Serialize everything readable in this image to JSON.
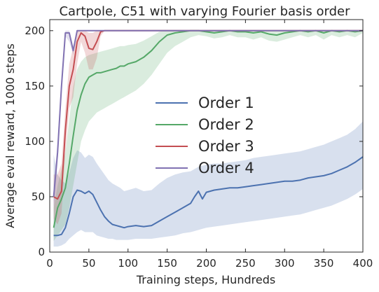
{
  "chart_data": {
    "type": "line",
    "title": "Cartpole, C51 with varying Fourier basis order",
    "xlabel": "Training steps, Hundreds",
    "ylabel": "Average eval reward, 1000 steps",
    "xlim": [
      0,
      400
    ],
    "ylim": [
      0,
      210
    ],
    "xticks": [
      0,
      50,
      100,
      150,
      200,
      250,
      300,
      350,
      400
    ],
    "yticks": [
      0,
      50,
      100,
      150,
      200
    ],
    "grid": false,
    "legend_position": "center",
    "series": [
      {
        "name": "Order 1",
        "color": "#4c72b0",
        "x": [
          5,
          10,
          15,
          20,
          25,
          30,
          35,
          40,
          45,
          50,
          55,
          60,
          65,
          70,
          75,
          80,
          85,
          90,
          95,
          100,
          110,
          120,
          130,
          140,
          150,
          160,
          170,
          180,
          185,
          190,
          195,
          200,
          210,
          220,
          230,
          240,
          250,
          260,
          270,
          280,
          290,
          300,
          310,
          320,
          330,
          340,
          350,
          360,
          370,
          380,
          390,
          400
        ],
        "y": [
          15,
          15,
          16,
          22,
          35,
          50,
          56,
          55,
          53,
          55,
          52,
          45,
          38,
          32,
          28,
          25,
          24,
          23,
          22,
          23,
          24,
          23,
          24,
          28,
          32,
          36,
          40,
          44,
          50,
          55,
          48,
          54,
          56,
          57,
          58,
          58,
          59,
          60,
          61,
          62,
          63,
          64,
          64,
          65,
          67,
          68,
          69,
          71,
          74,
          77,
          81,
          86
        ],
        "lower": [
          5,
          5,
          6,
          8,
          12,
          15,
          18,
          20,
          18,
          18,
          18,
          15,
          14,
          13,
          12,
          12,
          11,
          11,
          11,
          11,
          12,
          12,
          12,
          13,
          14,
          15,
          17,
          18,
          19,
          20,
          21,
          22,
          23,
          24,
          25,
          26,
          27,
          28,
          29,
          30,
          31,
          32,
          33,
          34,
          36,
          38,
          40,
          42,
          45,
          48,
          52,
          57
        ],
        "upper": [
          88,
          70,
          65,
          62,
          72,
          85,
          92,
          90,
          85,
          88,
          86,
          80,
          75,
          70,
          65,
          62,
          60,
          58,
          55,
          56,
          58,
          55,
          56,
          62,
          67,
          70,
          72,
          73,
          75,
          77,
          78,
          79,
          80,
          80,
          81,
          82,
          83,
          85,
          86,
          87,
          88,
          89,
          90,
          91,
          93,
          95,
          97,
          100,
          103,
          106,
          111,
          118
        ]
      },
      {
        "name": "Order 2",
        "color": "#55a868",
        "x": [
          5,
          10,
          15,
          20,
          25,
          30,
          35,
          40,
          45,
          50,
          55,
          60,
          65,
          70,
          75,
          80,
          85,
          90,
          95,
          100,
          110,
          120,
          130,
          140,
          150,
          160,
          170,
          180,
          190,
          200,
          210,
          220,
          230,
          240,
          250,
          260,
          270,
          280,
          290,
          300,
          310,
          320,
          330,
          340,
          350,
          360,
          370,
          380,
          390,
          400
        ],
        "y": [
          22,
          40,
          48,
          58,
          80,
          105,
          128,
          142,
          152,
          158,
          160,
          162,
          162,
          163,
          164,
          165,
          166,
          168,
          168,
          170,
          172,
          176,
          182,
          190,
          196,
          198,
          199,
          200,
          200,
          199,
          198,
          199,
          200,
          199,
          199,
          198,
          199,
          197,
          196,
          198,
          199,
          200,
          199,
          200,
          198,
          200,
          199,
          200,
          199,
          200
        ],
        "lower": [
          10,
          15,
          20,
          25,
          40,
          60,
          80,
          100,
          110,
          118,
          122,
          126,
          128,
          130,
          132,
          134,
          136,
          138,
          140,
          142,
          146,
          152,
          160,
          170,
          180,
          186,
          190,
          194,
          196,
          195,
          193,
          194,
          196,
          194,
          194,
          192,
          194,
          191,
          190,
          192,
          194,
          196,
          194,
          196,
          192,
          196,
          194,
          196,
          194,
          198
        ],
        "upper": [
          40,
          60,
          75,
          90,
          120,
          150,
          165,
          172,
          176,
          178,
          179,
          180,
          181,
          182,
          183,
          184,
          185,
          186,
          186,
          187,
          188,
          191,
          195,
          199,
          200,
          200,
          200,
          200,
          200,
          200,
          200,
          200,
          200,
          200,
          200,
          200,
          200,
          200,
          200,
          200,
          200,
          200,
          200,
          200,
          200,
          200,
          200,
          200,
          200,
          200
        ]
      },
      {
        "name": "Order 3",
        "color": "#c44e52",
        "x": [
          5,
          10,
          15,
          20,
          25,
          30,
          35,
          40,
          45,
          50,
          55,
          60,
          65,
          70,
          80,
          100,
          150,
          200,
          250,
          300,
          350,
          400
        ],
        "y": [
          50,
          48,
          55,
          110,
          150,
          165,
          190,
          198,
          195,
          184,
          183,
          190,
          199,
          200,
          200,
          200,
          200,
          200,
          200,
          200,
          200,
          200
        ],
        "lower": [
          30,
          25,
          35,
          90,
          130,
          140,
          170,
          190,
          180,
          165,
          165,
          175,
          195,
          200,
          200,
          200,
          200,
          200,
          200,
          200,
          200,
          200
        ],
        "upper": [
          70,
          70,
          80,
          130,
          170,
          185,
          200,
          200,
          200,
          198,
          198,
          200,
          200,
          200,
          200,
          200,
          200,
          200,
          200,
          200,
          200,
          200
        ]
      },
      {
        "name": "Order 4",
        "color": "#8172b2",
        "x": [
          5,
          10,
          15,
          20,
          25,
          30,
          35,
          40,
          45,
          50,
          60,
          80,
          100,
          150,
          200,
          250,
          300,
          350,
          400
        ],
        "y": [
          50,
          90,
          150,
          198,
          198,
          182,
          200,
          200,
          200,
          200,
          200,
          200,
          200,
          200,
          200,
          200,
          200,
          200,
          200
        ],
        "lower": [
          40,
          80,
          140,
          195,
          190,
          178,
          198,
          200,
          200,
          200,
          200,
          200,
          200,
          200,
          200,
          200,
          200,
          200,
          200
        ],
        "upper": [
          60,
          100,
          160,
          200,
          200,
          186,
          200,
          200,
          200,
          200,
          200,
          200,
          200,
          200,
          200,
          200,
          200,
          200,
          200
        ]
      }
    ]
  }
}
